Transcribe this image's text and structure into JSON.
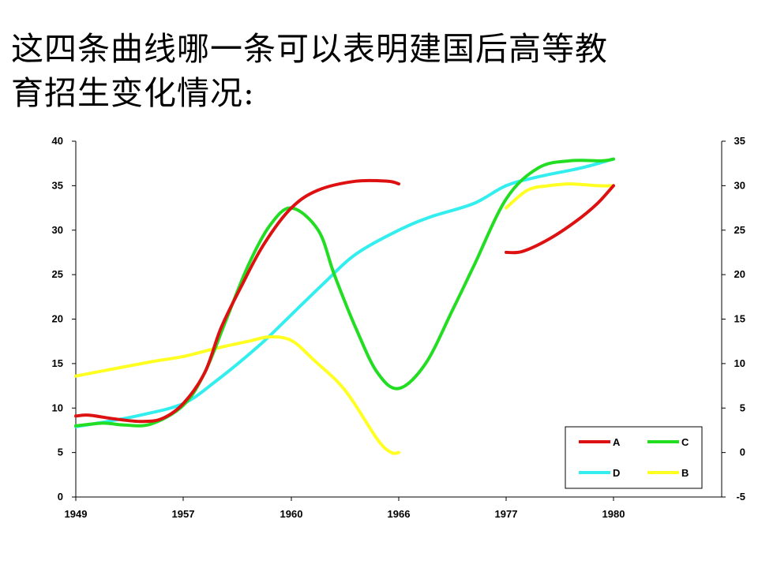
{
  "question": {
    "line1": "这四条曲线哪一条可以表明建国后高等教",
    "line2": "育招生变化情况:"
  },
  "colors": {
    "A": "#dd1111",
    "B": "#ffff22",
    "C": "#22dd22",
    "D": "#33eeee"
  },
  "chart_data": {
    "type": "line",
    "title": "",
    "xlabel": "",
    "ylabel": "",
    "x_tick_labels": [
      "1949",
      "1957",
      "1960",
      "1966",
      "1977",
      "1980"
    ],
    "y_left": {
      "ylim": [
        0,
        40
      ],
      "ticks": [
        "0",
        "5",
        "10",
        "15",
        "20",
        "25",
        "30",
        "35",
        "40"
      ]
    },
    "y_right": {
      "ylim": [
        -5,
        35
      ],
      "ticks": [
        "-5",
        "0",
        "5",
        "10",
        "15",
        "20",
        "25",
        "30",
        "35"
      ]
    },
    "grid": false,
    "legend_position": "bottom-right",
    "legend": [
      {
        "key": "A"
      },
      {
        "key": "C"
      },
      {
        "key": "D"
      },
      {
        "key": "B"
      }
    ],
    "note": "x positions are on a categorical axis: 0=1949, 1=1957, 2=1960, 3=1966, 4=1977, 5=1980; y values read on left axis",
    "series": [
      {
        "name": "A",
        "segments": [
          [
            [
              0,
              9.1
            ],
            [
              0.12,
              9.2
            ],
            [
              0.35,
              8.8
            ],
            [
              0.6,
              8.5
            ],
            [
              0.8,
              8.8
            ],
            [
              1.0,
              10.5
            ],
            [
              1.2,
              14
            ],
            [
              1.35,
              19
            ],
            [
              1.55,
              24
            ],
            [
              1.75,
              28.5
            ],
            [
              2.0,
              32.5
            ],
            [
              2.25,
              34.5
            ],
            [
              2.6,
              35.5
            ],
            [
              2.9,
              35.5
            ],
            [
              3.0,
              35.2
            ]
          ],
          [
            [
              4.0,
              27.5
            ],
            [
              4.15,
              27.6
            ],
            [
              4.4,
              29
            ],
            [
              4.65,
              31
            ],
            [
              4.85,
              33
            ],
            [
              5.0,
              35
            ]
          ]
        ]
      },
      {
        "name": "C",
        "segments": [
          [
            [
              0,
              8
            ],
            [
              0.25,
              8.3
            ],
            [
              0.45,
              8.1
            ],
            [
              0.7,
              8.2
            ],
            [
              1.0,
              10.3
            ],
            [
              1.2,
              14
            ],
            [
              1.4,
              20
            ],
            [
              1.6,
              26
            ],
            [
              1.8,
              30.5
            ],
            [
              2.0,
              32.5
            ],
            [
              2.25,
              30
            ],
            [
              2.4,
              25
            ],
            [
              2.6,
              19
            ],
            [
              2.8,
              14
            ],
            [
              3.0,
              12.2
            ],
            [
              3.25,
              15
            ],
            [
              3.5,
              21
            ],
            [
              3.7,
              26
            ],
            [
              4.0,
              33.5
            ],
            [
              4.3,
              37
            ],
            [
              4.6,
              37.8
            ],
            [
              4.9,
              37.8
            ],
            [
              5.0,
              38
            ]
          ]
        ]
      },
      {
        "name": "D",
        "segments": [
          [
            [
              0,
              7.9
            ],
            [
              0.3,
              8.5
            ],
            [
              0.6,
              9.2
            ],
            [
              1.0,
              10.5
            ],
            [
              1.3,
              13
            ],
            [
              1.7,
              17
            ],
            [
              2.0,
              20.5
            ],
            [
              2.3,
              24
            ],
            [
              2.6,
              27.3
            ],
            [
              3.0,
              30
            ],
            [
              3.3,
              31.5
            ],
            [
              3.7,
              33
            ],
            [
              4.0,
              35
            ],
            [
              4.3,
              36
            ],
            [
              4.7,
              37
            ],
            [
              5.0,
              38
            ]
          ]
        ]
      },
      {
        "name": "B",
        "segments": [
          [
            [
              0,
              13.6
            ],
            [
              0.35,
              14.4
            ],
            [
              0.7,
              15.2
            ],
            [
              1.0,
              15.8
            ],
            [
              1.3,
              16.7
            ],
            [
              1.6,
              17.5
            ],
            [
              1.8,
              18
            ],
            [
              2.0,
              17.6
            ],
            [
              2.2,
              15.5
            ],
            [
              2.5,
              12
            ],
            [
              2.8,
              6.5
            ],
            [
              2.93,
              5
            ],
            [
              3.0,
              5
            ]
          ],
          [
            [
              4.0,
              32.5
            ],
            [
              4.2,
              34.5
            ],
            [
              4.4,
              35
            ],
            [
              4.6,
              35.2
            ],
            [
              4.85,
              35
            ],
            [
              5.0,
              35
            ]
          ]
        ]
      }
    ]
  }
}
